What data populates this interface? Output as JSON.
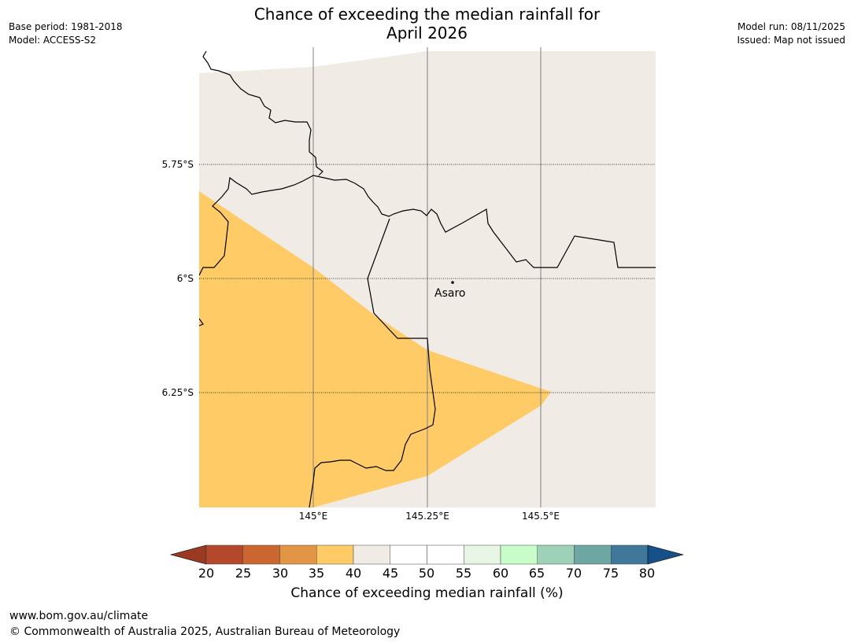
{
  "header": {
    "title_line1": "Chance of exceeding the median rainfall for",
    "title_line2": "April 2026",
    "base_period": "Base period: 1981-2018",
    "model": "Model: ACCESS-S2",
    "model_run": "Model run: 08/11/2025",
    "issued": "Issued: Map not issued"
  },
  "map": {
    "lat_labels": [
      "5.75°S",
      "6°S",
      "6.25°S"
    ],
    "lon_labels": [
      "145°E",
      "145.25°E",
      "145.5°E"
    ],
    "place": {
      "name": "Asaro"
    },
    "colors": {
      "background": "#f0ebe5",
      "below_median_35_40": "#fecb67",
      "border_line": "#000000",
      "gridline": "#808080"
    }
  },
  "colorbar": {
    "title": "Chance of exceeding median rainfall (%)",
    "tick_labels": [
      "20",
      "25",
      "30",
      "35",
      "40",
      "45",
      "50",
      "55",
      "60",
      "65",
      "70",
      "75",
      "80"
    ],
    "colors": [
      "#9a3a22",
      "#b3482a",
      "#cc6630",
      "#e29545",
      "#fecb67",
      "#f0ebe5",
      "#ffffff",
      "#ffffff",
      "#e8f6e6",
      "#c8fcc8",
      "#9dd1b8",
      "#6ea6a4",
      "#3f7899",
      "#165089"
    ]
  },
  "footer": {
    "url": "www.bom.gov.au/climate",
    "copyright": "© Commonwealth of Australia 2025, Australian Bureau of Meteorology"
  }
}
